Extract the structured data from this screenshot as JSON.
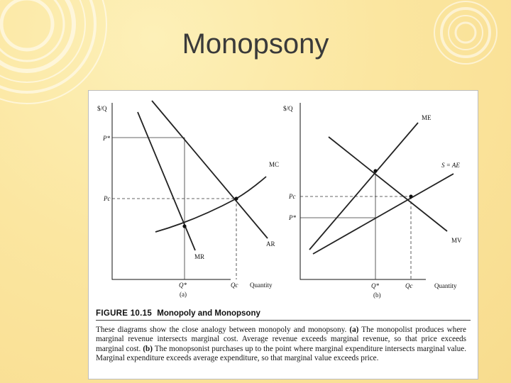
{
  "slide": {
    "title": "Monopsony"
  },
  "figure": {
    "number": "FIGURE 10.15",
    "name": "Monopoly and Monopsony",
    "caption": {
      "intro": "These diagrams show the close analogy between monopoly and monopsony.",
      "a_label": "(a)",
      "a_text": "The monopolist produces where marginal revenue intersects marginal cost. Average revenue exceeds marginal revenue, so that price exceeds marginal cost.",
      "b_label": "(b)",
      "b_text": "The monopsonist purchases up to the point where marginal expenditure intersects marginal value. Marginal expenditure exceeds average expenditure, so that marginal value exceeds price."
    },
    "panel_a": {
      "y_axis_label": "$/Q",
      "x_axis_label": "Quantity",
      "panel_label": "(a)",
      "price_labels": [
        "P*",
        "Pc"
      ],
      "quantity_labels": [
        "Q*",
        "Qc"
      ],
      "curves": [
        "MC",
        "AR",
        "MR"
      ]
    },
    "panel_b": {
      "y_axis_label": "$/Q",
      "x_axis_label": "Quantity",
      "panel_label": "(b)",
      "price_labels": [
        "Pc",
        "P*"
      ],
      "quantity_labels": [
        "Q*",
        "Qc"
      ],
      "curves": [
        "ME",
        "S = AE",
        "MV"
      ]
    }
  }
}
